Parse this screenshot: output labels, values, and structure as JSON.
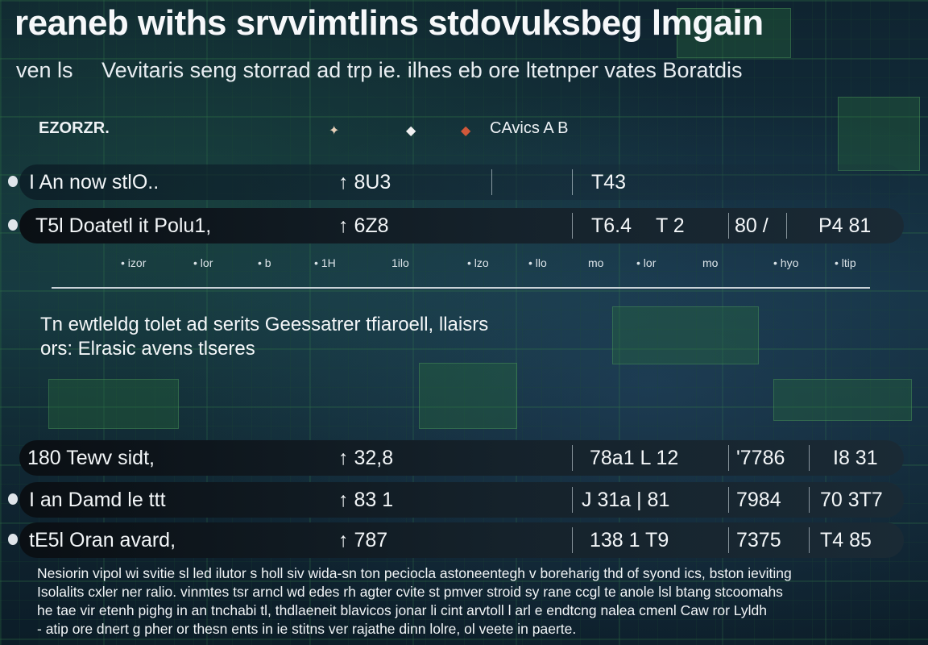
{
  "header": {
    "title": "reaneb withs srvvimtlins stdovuksbeg lmgain",
    "subtitle_tabs": [
      "ven ls",
      "Vevitaris seng storrad ad trp ie. ilhes eb ore ltetnper vates Boratdis"
    ]
  },
  "legend": {
    "label": "EZORZR.",
    "markers": [
      "✦",
      "◆",
      "◆"
    ],
    "caption": "CAvics A  B"
  },
  "rows_top": [
    {
      "name": "I An now stlO..",
      "v1": "↑  8U3",
      "v2": "T43",
      "v3": "",
      "v4": "",
      "v5": ""
    },
    {
      "name": "T5l   Doatetl it Polu1,",
      "v1": "↑  6Z8",
      "v2": "T6.4",
      "v3": "T 2",
      "v4": "80 /",
      "v5": "P4   81"
    }
  ],
  "subrow_labels": [
    "• izor",
    "• lor",
    "• b",
    "• 1H",
    "1ilo",
    "• lzo",
    "•  llo",
    "mo",
    "• lor",
    "mo",
    "• hyo",
    "• ltip"
  ],
  "mid_text": [
    "Tn ewtleldg tolet ad serits  Geessatrer tfiaroell, llaisrs",
    "ors: Elrasic avens tlseres"
  ],
  "rows_bottom": [
    {
      "name": "180   Tewv sidt,",
      "v1": "↑  32,8",
      "v2": "78a1  L  12",
      "v3": "'7786",
      "v4": "I8   31"
    },
    {
      "name": "I an   Damd le ttt",
      "v1": "↑  83 1",
      "v2": "J 31a  |  81",
      "v3": "7984",
      "v4": "70   3T7"
    },
    {
      "name": "tE5l   Oran avard,",
      "v1": "↑  787",
      "v2": "138 1   T9",
      "v3": "7375",
      "v4": "T4  85"
    }
  ],
  "footer": [
    "Nesiorin vipol wi svitie sl led ilutor s holl siv wida-sn ton peciocla astoneentegh v boreharig thd of syond ics, bston ieviting",
    "Isolalits cxler ner ralio. vinmtes tsr arncl wd edes rh agter cvite st pmver stroid sy rane ccgl te anole lsl btang stcoomahs",
    "he tae vir etenh pighg in an tnchabi tl, thdlaeneit blavicos jonar li cint arvtoll l arl e endtcng nalea cmenl Caw ror Lyldh",
    "- atip ore dnert g pher or thesn ents in ie stitns ver rajathe dinn lolre, ol veete in paerte."
  ]
}
